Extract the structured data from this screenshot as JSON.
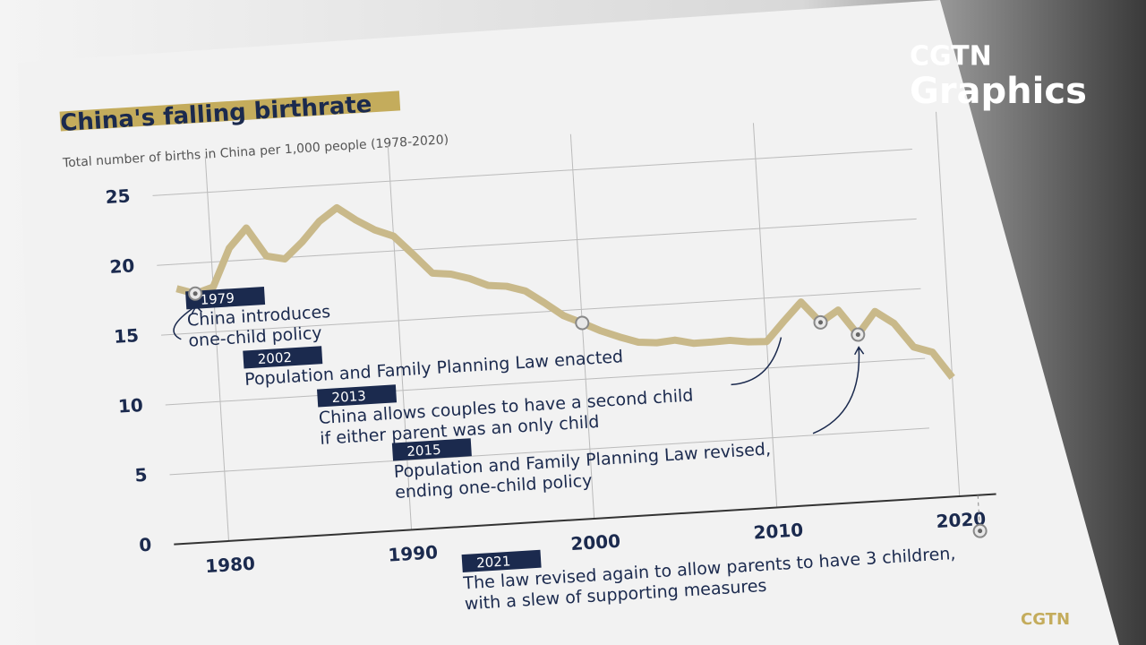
{
  "chart_data": {
    "type": "line",
    "title": "China's falling birthrate",
    "subtitle": "Total number of births in China per 1,000 people (1978-2020)",
    "brand": "CGTN",
    "brand_sub": "Graphics",
    "footer": "CGTN",
    "x": [
      1978,
      1979,
      1980,
      1981,
      1982,
      1983,
      1984,
      1985,
      1986,
      1987,
      1988,
      1989,
      1990,
      1991,
      1992,
      1993,
      1994,
      1995,
      1996,
      1997,
      1998,
      1999,
      2000,
      2001,
      2002,
      2003,
      2004,
      2005,
      2006,
      2007,
      2008,
      2009,
      2010,
      2011,
      2012,
      2013,
      2014,
      2015,
      2016,
      2017,
      2018,
      2019,
      2020
    ],
    "series": [
      {
        "name": "Births per 1,000 people",
        "color": "#c9b98a",
        "values": [
          18.25,
          17.82,
          18.21,
          20.91,
          22.28,
          20.19,
          19.9,
          21.04,
          22.43,
          23.33,
          22.37,
          21.58,
          21.06,
          19.68,
          18.24,
          18.09,
          17.7,
          17.12,
          16.98,
          16.57,
          15.64,
          14.64,
          14.03,
          13.38,
          12.86,
          12.41,
          12.29,
          12.4,
          12.09,
          12.1,
          12.14,
          11.95,
          11.9,
          13.27,
          14.57,
          13.03,
          13.83,
          11.99,
          13.57,
          12.64,
          10.86,
          10.41,
          8.52
        ]
      }
    ],
    "xlim": [
      1977,
      2022
    ],
    "xticks": [
      1980,
      1990,
      2000,
      2010,
      2020
    ],
    "ylim": [
      0,
      25
    ],
    "yticks": [
      0,
      5,
      10,
      15,
      20,
      25
    ],
    "grid": true,
    "annotations": [
      {
        "year": 1979,
        "lines": [
          "China introduces",
          "one-child policy"
        ]
      },
      {
        "year": 2002,
        "lines": [
          "Population and Family Planning Law enacted"
        ]
      },
      {
        "year": 2013,
        "lines": [
          "China allows couples to have a second child",
          "if either parent was an only child"
        ]
      },
      {
        "year": 2015,
        "lines": [
          "Population and Family Planning Law revised,",
          "ending one-child policy"
        ]
      },
      {
        "year": 2021,
        "lines": [
          "The law revised again to allow parents to have 3 children,",
          "with a slew of supporting measures"
        ]
      }
    ]
  }
}
